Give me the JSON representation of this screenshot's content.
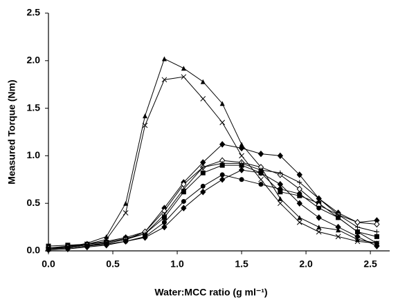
{
  "chart_data": {
    "type": "line",
    "x_label": "Water:MCC ratio (g ml⁻¹)",
    "y_label": "Measured Torque (Nm)",
    "x": [
      0,
      0.15,
      0.3,
      0.45,
      0.6,
      0.75,
      0.9,
      1.05,
      1.2,
      1.35,
      1.5,
      1.65,
      1.8,
      1.95,
      2.1,
      2.25,
      2.4,
      2.55
    ],
    "series": [
      {
        "color": "#000000",
        "marker": "triangle",
        "values": [
          0.02,
          0.04,
          0.08,
          0.15,
          0.5,
          1.42,
          2.02,
          1.92,
          1.78,
          1.55,
          1.12,
          0.88,
          0.55,
          0.35,
          0.25,
          0.22,
          0.12,
          0.08
        ]
      },
      {
        "color": "#000000",
        "marker": "x",
        "values": [
          0.02,
          0.04,
          0.07,
          0.12,
          0.4,
          1.32,
          1.8,
          1.83,
          1.6,
          1.35,
          1.0,
          0.75,
          0.5,
          0.3,
          0.2,
          0.15,
          0.1,
          0.08
        ]
      },
      {
        "color": "#000000",
        "marker": "diamond",
        "values": [
          0.03,
          0.05,
          0.07,
          0.1,
          0.14,
          0.2,
          0.45,
          0.72,
          0.93,
          1.12,
          1.08,
          1.02,
          1.0,
          0.8,
          0.55,
          0.4,
          0.3,
          0.32
        ]
      },
      {
        "color": "#000000",
        "marker": "square",
        "values": [
          0.05,
          0.06,
          0.07,
          0.09,
          0.13,
          0.18,
          0.35,
          0.62,
          0.82,
          0.9,
          0.9,
          0.82,
          0.62,
          0.58,
          0.5,
          0.35,
          0.2,
          0.15
        ]
      },
      {
        "color": "#000000",
        "marker": "open-diamond",
        "values": [
          0.03,
          0.04,
          0.06,
          0.08,
          0.12,
          0.2,
          0.42,
          0.7,
          0.88,
          0.95,
          0.93,
          0.88,
          0.8,
          0.65,
          0.48,
          0.38,
          0.3,
          0.28
        ]
      },
      {
        "color": "#000000",
        "marker": "circle",
        "values": [
          0.02,
          0.03,
          0.05,
          0.07,
          0.1,
          0.15,
          0.3,
          0.52,
          0.68,
          0.8,
          0.75,
          0.7,
          0.65,
          0.6,
          0.45,
          0.35,
          0.2,
          0.08
        ]
      },
      {
        "color": "#000000",
        "marker": "diamond",
        "values": [
          0.01,
          0.02,
          0.04,
          0.06,
          0.1,
          0.14,
          0.25,
          0.45,
          0.62,
          0.75,
          0.85,
          0.82,
          0.7,
          0.5,
          0.35,
          0.25,
          0.15,
          0.05
        ]
      },
      {
        "color": "#000000",
        "marker": "plus",
        "values": [
          0.02,
          0.03,
          0.05,
          0.08,
          0.12,
          0.18,
          0.38,
          0.65,
          0.88,
          0.92,
          0.92,
          0.85,
          0.82,
          0.72,
          0.55,
          0.38,
          0.25,
          0.2
        ]
      }
    ],
    "xlim": [
      0,
      2.65
    ],
    "ylim": [
      0,
      2.5
    ],
    "xticks": [
      {
        "value": 0,
        "label": "0.0"
      },
      0.5,
      {
        "value": 1,
        "label": "1.0"
      },
      1.5,
      {
        "value": 2,
        "label": "2.0"
      },
      2.5
    ],
    "yticks": [
      {
        "value": 0,
        "label": "0.0"
      },
      0.5,
      {
        "value": 1,
        "label": "1.0"
      },
      1.5,
      {
        "value": 2,
        "label": "2.0"
      },
      2.5
    ],
    "grid": false
  }
}
